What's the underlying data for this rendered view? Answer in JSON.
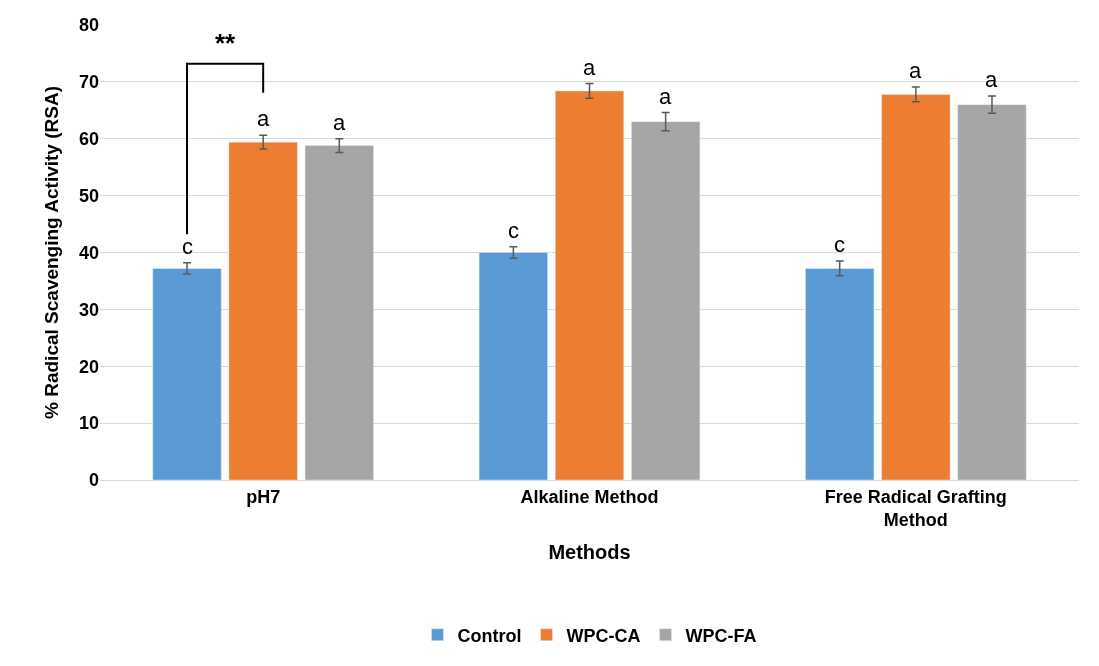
{
  "chart_data": {
    "type": "bar",
    "xlabel": "Methods",
    "ylabel": "% Radical Scavenging Activity (RSA)",
    "categories": [
      "pH7",
      "Alkaline Method",
      "Free Radical Grafting Method"
    ],
    "series": [
      {
        "name": "Control",
        "color": "#5b9bd5",
        "values": [
          37.2,
          40.0,
          37.2
        ],
        "errors": [
          1.0,
          1.0,
          1.3
        ],
        "value_labels": [
          "c",
          "c",
          "c"
        ]
      },
      {
        "name": "WPC-CA",
        "color": "#ed7d31",
        "values": [
          59.4,
          68.4,
          67.8
        ],
        "errors": [
          1.2,
          1.3,
          1.3
        ],
        "value_labels": [
          "a",
          "a",
          "a"
        ]
      },
      {
        "name": "WPC-FA",
        "color": "#a5a5a5",
        "values": [
          58.8,
          63.0,
          66.0
        ],
        "errors": [
          1.2,
          1.6,
          1.5
        ],
        "value_labels": [
          "a",
          "a",
          "a"
        ]
      }
    ],
    "annotations": [
      "**"
    ],
    "ylim": [
      0,
      80
    ],
    "yticks": [
      0,
      10,
      20,
      30,
      40,
      50,
      60,
      70,
      80
    ],
    "grid": "y",
    "legend": "bottom"
  }
}
